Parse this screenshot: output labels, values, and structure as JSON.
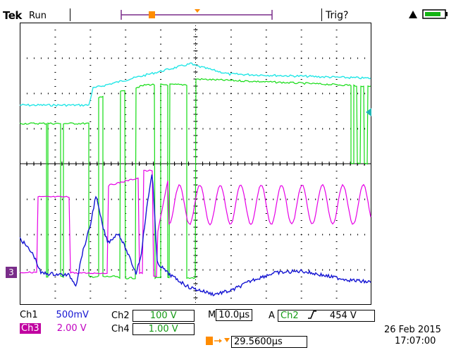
{
  "header": {
    "brand": "Tek",
    "state": "Run",
    "trigger_status": "Trig?"
  },
  "colors": {
    "ch1": "#1414d2",
    "ch2": "#14dc14",
    "ch3": "#e600e6",
    "ch4": "#22e6e6",
    "trigger_marker": "#ff8c00",
    "grid": "#000000"
  },
  "channels": {
    "ch1": {
      "label": "Ch1",
      "scale": "500mV"
    },
    "ch2": {
      "label": "Ch2",
      "scale": "100 V"
    },
    "ch3": {
      "label": "Ch3",
      "scale": "2.00 V"
    },
    "ch4": {
      "label": "Ch4",
      "scale": "1.00 V"
    }
  },
  "timebase": {
    "label": "M",
    "value": "10.0µs"
  },
  "trigger": {
    "mode": "A",
    "source": "Ch2",
    "slope": "rising",
    "level": "454 V"
  },
  "position": {
    "value": "29.5600µs"
  },
  "datetime": {
    "date": "26 Feb  2015",
    "time": "17:07:00"
  },
  "markers": {
    "ground_ch3": "3"
  }
}
